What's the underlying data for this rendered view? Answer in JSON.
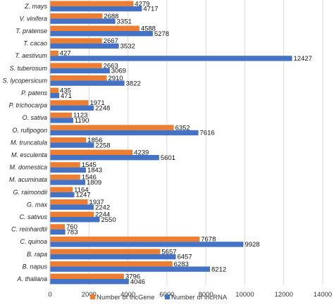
{
  "chart_data": {
    "type": "bar",
    "orientation": "horizontal",
    "title": "",
    "xlabel": "",
    "ylabel": "",
    "categories": [
      "Z. mays",
      "V. vinifera",
      "T. pratense",
      "T. cacao",
      "T. aestivum",
      "S. tuberosum",
      "S. lycopersicum",
      "P. patens",
      "P. trichocarpa",
      "O. sativa",
      "O. rufipogon",
      "M. truncatula",
      "M. esculenta",
      "M. domestica",
      "M. acuminata",
      "G. raimondii",
      "G. max",
      "C. sativus",
      "C. reinhardtii",
      "C. quinoa",
      "B. rapa",
      "B. napus",
      "A. thaliana"
    ],
    "series": [
      {
        "name": "Number of lncGene",
        "color": "#ED7D31",
        "values": [
          4279,
          2688,
          4588,
          2667,
          427,
          2663,
          2910,
          435,
          1971,
          1123,
          6352,
          1856,
          4239,
          1545,
          1546,
          1164,
          1937,
          2244,
          760,
          7678,
          5657,
          6283,
          3796
        ]
      },
      {
        "name": "Number of lncRNA",
        "color": "#4472C4",
        "values": [
          4717,
          3351,
          5278,
          3532,
          12427,
          3069,
          3822,
          471,
          2248,
          1190,
          7616,
          2258,
          5601,
          1843,
          1809,
          1247,
          2242,
          2550,
          783,
          9928,
          6457,
          8212,
          4046
        ]
      }
    ],
    "xlim": [
      0,
      14000
    ],
    "xticks": [
      "0",
      "2000",
      "4000",
      "6000",
      "8000",
      "10000",
      "12000",
      "14000"
    ],
    "grid": true,
    "legend": "bottom"
  }
}
